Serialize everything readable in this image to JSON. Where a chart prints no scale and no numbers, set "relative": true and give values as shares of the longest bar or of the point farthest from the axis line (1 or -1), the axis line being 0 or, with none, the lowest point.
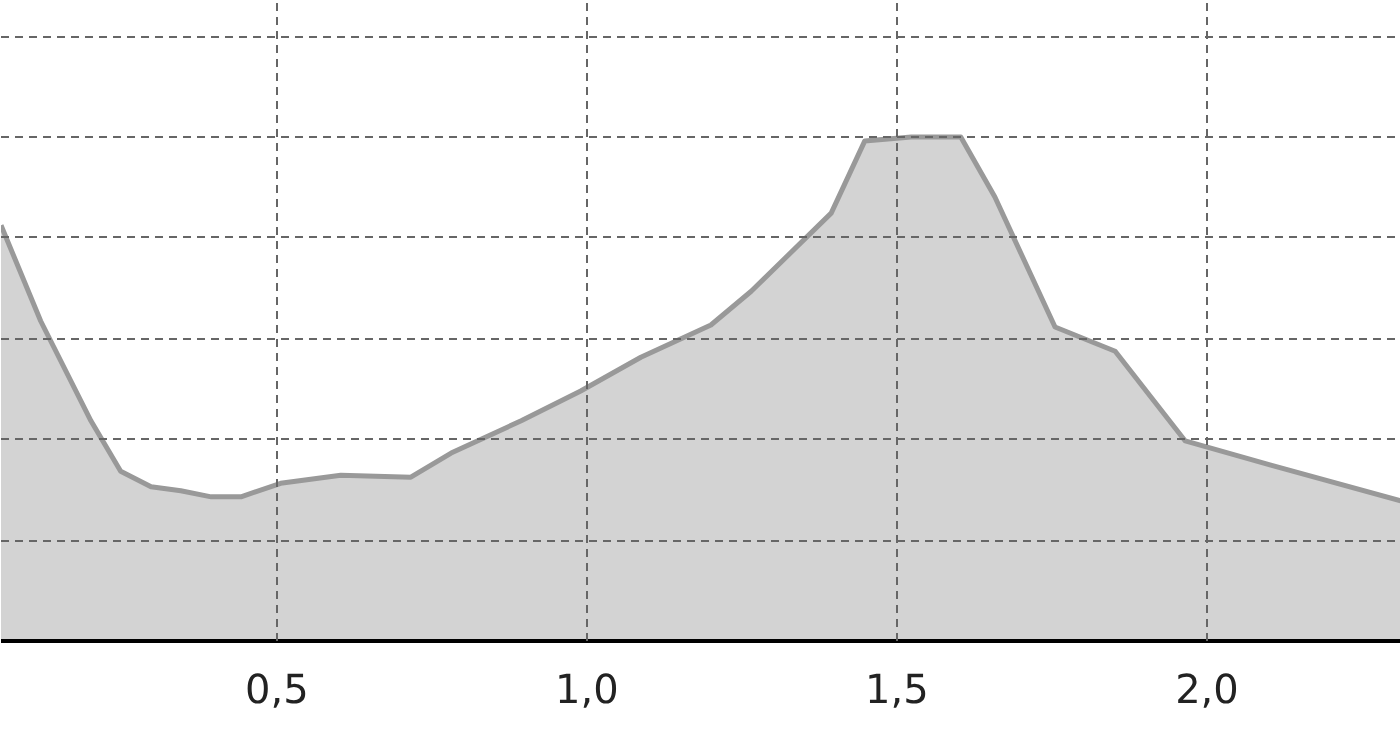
{
  "chart_data": {
    "type": "area",
    "relative": true,
    "x": [
      0.055,
      0.119,
      0.2,
      0.248,
      0.297,
      0.345,
      0.394,
      0.442,
      0.506,
      0.603,
      0.716,
      0.781,
      0.894,
      0.99,
      1.087,
      1.2,
      1.265,
      1.394,
      1.448,
      1.523,
      1.603,
      1.658,
      1.755,
      1.852,
      1.965,
      2.103,
      2.313
    ],
    "series": [
      {
        "color": "#d3d3d3",
        "values": [
          0.825,
          0.635,
          0.437,
          0.337,
          0.306,
          0.298,
          0.286,
          0.286,
          0.313,
          0.329,
          0.325,
          0.373,
          0.437,
          0.496,
          0.563,
          0.627,
          0.694,
          0.849,
          0.992,
          1.0,
          1.0,
          0.881,
          0.623,
          0.575,
          0.397,
          0.349,
          0.278
        ]
      }
    ],
    "xlim": [
      0.055,
      2.313
    ],
    "xticks": [
      {
        "value": 0.5,
        "label": "0,5"
      },
      {
        "value": 1.0,
        "label": "1,0"
      },
      {
        "value": 1.5,
        "label": "1,5"
      },
      {
        "value": 2.0,
        "label": "2,0"
      }
    ],
    "grid": true
  }
}
